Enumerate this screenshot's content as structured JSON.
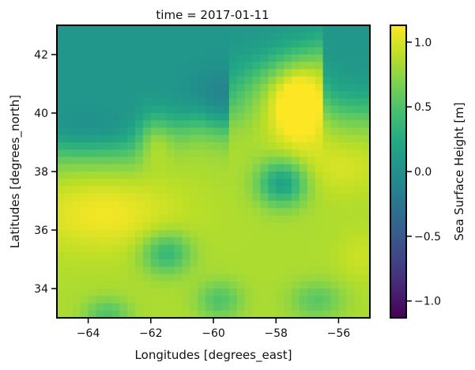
{
  "chart_data": {
    "type": "heatmap",
    "title": "time = 2017-01-11",
    "xlabel": "Longitudes [degrees_east]",
    "ylabel": "Latitudes [degrees_north]",
    "xlim": [
      -65,
      -55
    ],
    "ylim": [
      33,
      43
    ],
    "x_ticks": [
      -64,
      -62,
      -60,
      -58,
      -56
    ],
    "x_tick_labels": [
      "−64",
      "−62",
      "−60",
      "−58",
      "−56"
    ],
    "y_ticks": [
      34,
      36,
      38,
      40,
      42
    ],
    "y_tick_labels": [
      "34",
      "36",
      "38",
      "40",
      "42"
    ],
    "colorbar": {
      "label": "Sea Surface Height [m]",
      "min": -1.13,
      "max": 1.13,
      "colormap": "viridis",
      "ticks": [
        -1.0,
        -0.5,
        0.0,
        0.5,
        1.0
      ],
      "tick_labels": [
        "−1.0",
        "−0.5",
        "0.0",
        "0.5",
        "1.0"
      ]
    },
    "grid": false,
    "features": [
      {
        "kind": "low",
        "lon": -59.9,
        "lat": 40.5,
        "value": -0.05
      },
      {
        "kind": "low",
        "lon": -64.0,
        "lat": 39.2,
        "value": -0.05
      },
      {
        "kind": "low",
        "lon": -62.0,
        "lat": 42.0,
        "value": 0.05
      },
      {
        "kind": "low",
        "lon": -57.8,
        "lat": 37.6,
        "value": 0.1
      },
      {
        "kind": "low",
        "lon": -61.5,
        "lat": 35.2,
        "value": 0.3
      },
      {
        "kind": "low",
        "lon": -59.8,
        "lat": 33.7,
        "value": 0.4
      },
      {
        "kind": "low",
        "lon": -56.7,
        "lat": 33.6,
        "value": 0.45
      },
      {
        "kind": "low",
        "lon": -63.4,
        "lat": 33.1,
        "value": 0.4
      },
      {
        "kind": "high",
        "lon": -63.3,
        "lat": 36.5,
        "value": 1.05
      },
      {
        "kind": "high",
        "lon": -57.0,
        "lat": 38.4,
        "value": 0.9
      },
      {
        "kind": "high",
        "lon": -57.5,
        "lat": 40.4,
        "value": 0.9
      }
    ]
  }
}
